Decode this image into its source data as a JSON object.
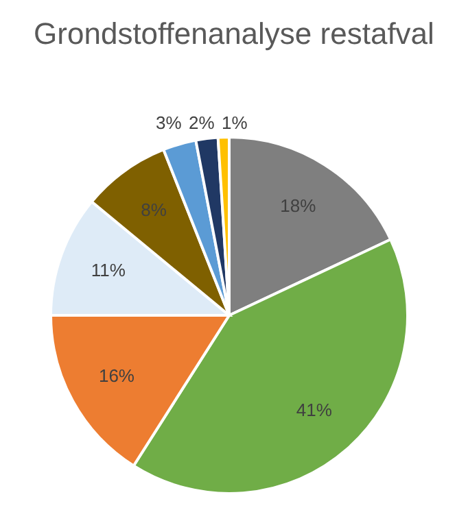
{
  "chart_data": {
    "type": "pie",
    "title": "Grondstoffenanalyse restafval",
    "categories": [
      null,
      null,
      null,
      null,
      null,
      null,
      null,
      null
    ],
    "values": [
      18,
      41,
      16,
      11,
      8,
      3,
      2,
      1
    ],
    "colors": [
      "#7f7f7f",
      "#70ad47",
      "#ed7d31",
      "#deebf7",
      "#7f6000",
      "#5b9bd5",
      "#203864",
      "#ffc000"
    ],
    "value_labels": [
      "18%",
      "41%",
      "16%",
      "11%",
      "8%",
      "3%",
      "2%",
      "1%"
    ]
  }
}
